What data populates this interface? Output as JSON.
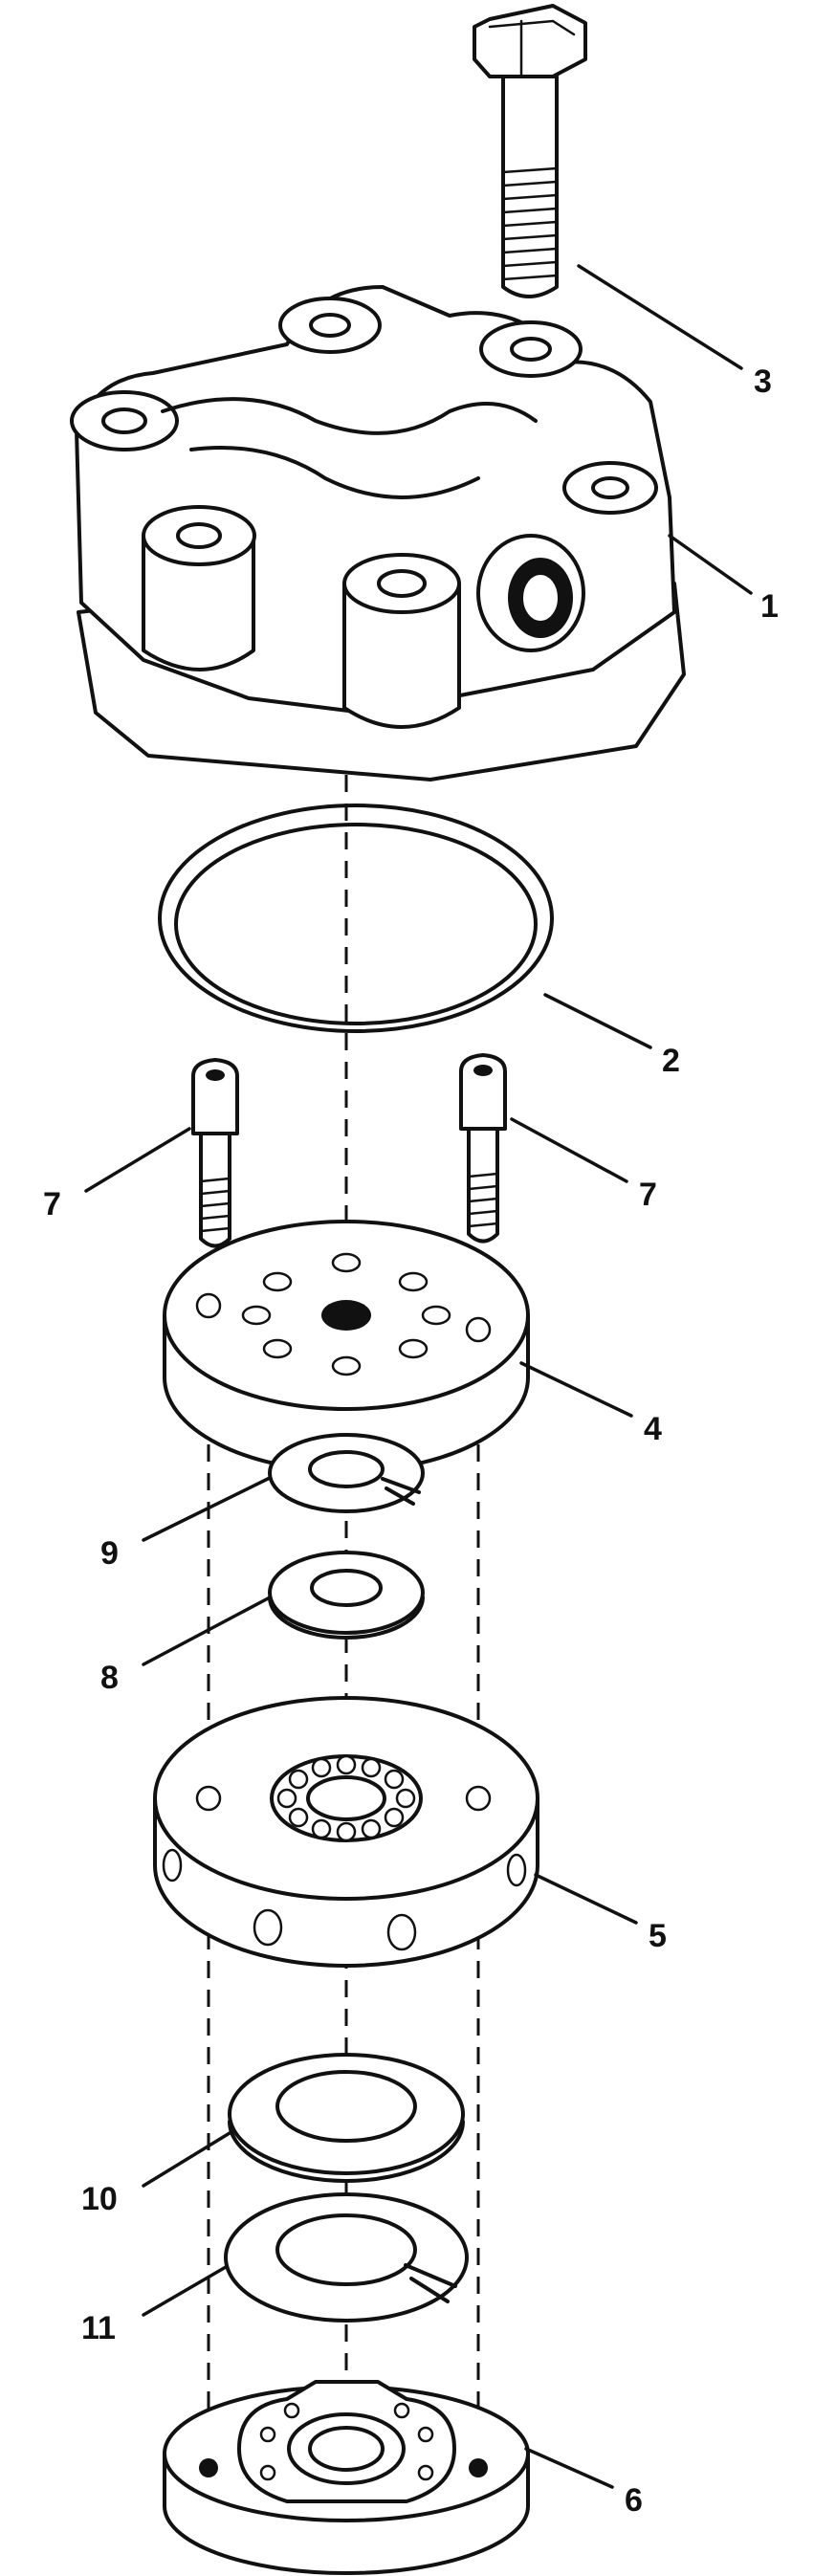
{
  "callouts": {
    "c1": "1",
    "c2": "2",
    "c3": "3",
    "c4": "4",
    "c5": "5",
    "c6": "6",
    "c7_left": "7",
    "c7_right": "7",
    "c8": "8",
    "c9": "9",
    "c10": "10",
    "c11": "11"
  }
}
